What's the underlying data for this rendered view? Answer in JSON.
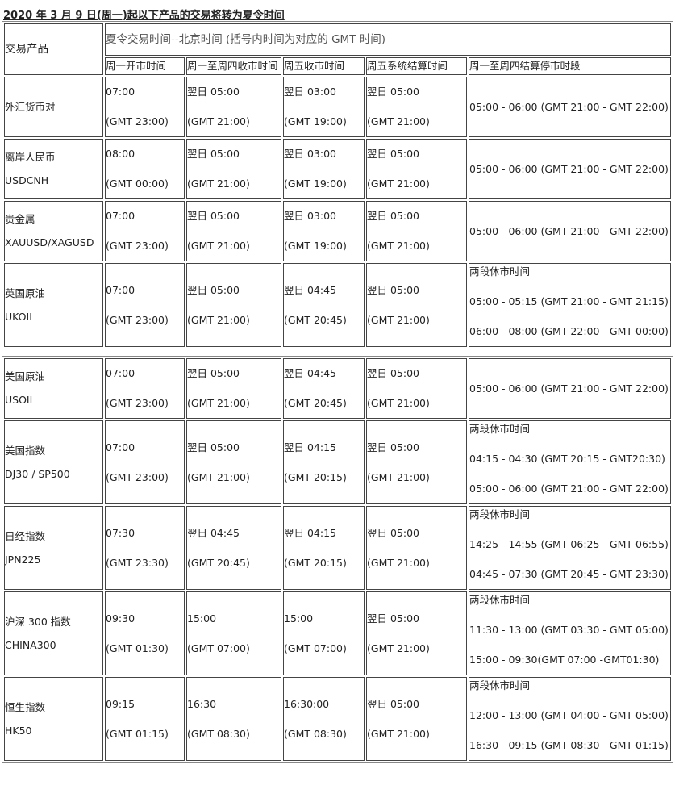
{
  "title": "2020 年 3 月 9 日(周一)起以下产品的交易将转为夏令时间",
  "table": {
    "header": {
      "product": "交易产品",
      "group": "夏令交易时间--北京时间 (括号内时间为对应的 GMT 时间)",
      "columns": [
        "周一开市时间",
        "周一至周四收市时间",
        "周五收市时间",
        "周五系统结算时间",
        "周一至周四结算停市时段"
      ]
    },
    "row_groups": [
      {
        "rows": [
          {
            "product": [
              "外汇货币对"
            ],
            "times": [
              [
                "07:00",
                "(GMT 23:00)"
              ],
              [
                "翌日 05:00",
                "(GMT 21:00)"
              ],
              [
                "翌日 03:00",
                "(GMT 19:00)"
              ],
              [
                "翌日 05:00",
                "(GMT 21:00)"
              ]
            ],
            "pause": [
              "05:00 - 06:00 (GMT 21:00 - GMT 22:00)"
            ]
          },
          {
            "product": [
              "离岸人民币",
              "USDCNH"
            ],
            "times": [
              [
                "08:00",
                "(GMT 00:00)"
              ],
              [
                "翌日 05:00",
                "(GMT 21:00)"
              ],
              [
                "翌日 03:00",
                "(GMT 19:00)"
              ],
              [
                "翌日 05:00",
                "(GMT 21:00)"
              ]
            ],
            "pause": [
              "05:00 - 06:00 (GMT 21:00 - GMT 22:00)"
            ]
          },
          {
            "product": [
              "贵金属",
              "XAUUSD/XAGUSD"
            ],
            "times": [
              [
                "07:00",
                "(GMT 23:00)"
              ],
              [
                "翌日 05:00",
                "(GMT 21:00)"
              ],
              [
                "翌日 03:00",
                "(GMT 19:00)"
              ],
              [
                "翌日 05:00",
                "(GMT 21:00)"
              ]
            ],
            "pause": [
              "05:00 - 06:00 (GMT 21:00 - GMT 22:00)"
            ]
          },
          {
            "product": [
              "英国原油",
              "UKOIL"
            ],
            "times": [
              [
                "07:00",
                "(GMT 23:00)"
              ],
              [
                "翌日  05:00",
                "(GMT 21:00)"
              ],
              [
                "翌日  04:45",
                "(GMT 20:45)"
              ],
              [
                "翌日 05:00",
                "(GMT 21:00)"
              ]
            ],
            "pause": [
              "两段休市时间",
              "05:00 - 05:15 (GMT 21:00 - GMT 21:15)",
              "06:00 - 08:00 (GMT 22:00 - GMT 00:00)"
            ]
          }
        ]
      },
      {
        "rows": [
          {
            "product": [
              "美国原油",
              "USOIL"
            ],
            "times": [
              [
                "07:00",
                "(GMT 23:00)"
              ],
              [
                "翌日  05:00",
                "(GMT 21:00)"
              ],
              [
                "翌日  04:45",
                "(GMT 20:45)"
              ],
              [
                "翌日 05:00",
                "(GMT 21:00)"
              ]
            ],
            "pause": [
              "05:00 - 06:00 (GMT 21:00 - GMT 22:00)"
            ]
          },
          {
            "product": [
              "美国指数",
              "DJ30 / SP500"
            ],
            "times": [
              [
                "07:00",
                "(GMT 23:00)"
              ],
              [
                "翌日  05:00",
                "(GMT 21:00)"
              ],
              [
                "翌日  04:15",
                "(GMT 20:15)"
              ],
              [
                "翌日 05:00",
                "(GMT 21:00)"
              ]
            ],
            "pause": [
              "两段休市时间",
              "04:15 - 04:30 (GMT 20:15 - GMT20:30)",
              "05:00 - 06:00 (GMT 21:00 - GMT 22:00)"
            ]
          },
          {
            "product": [
              "日经指数",
              "JPN225"
            ],
            "times": [
              [
                "07:30",
                "(GMT 23:30)"
              ],
              [
                "翌日  04:45",
                "(GMT 20:45)"
              ],
              [
                "翌日  04:15",
                "(GMT 20:15)"
              ],
              [
                "翌日 05:00",
                "(GMT 21:00)"
              ]
            ],
            "pause": [
              "两段休市时间",
              "14:25 - 14:55 (GMT 06:25 - GMT 06:55)",
              "04:45 - 07:30 (GMT 20:45 - GMT 23:30)"
            ]
          },
          {
            "product": [
              "沪深 300 指数",
              "CHINA300"
            ],
            "times": [
              [
                "09:30",
                "(GMT 01:30)"
              ],
              [
                "15:00",
                "(GMT 07:00)"
              ],
              [
                "15:00",
                "(GMT 07:00)"
              ],
              [
                "翌日 05:00",
                "(GMT 21:00)"
              ]
            ],
            "pause": [
              "两段休市时间",
              "11:30 - 13:00 (GMT 03:30 - GMT 05:00)",
              "15:00 - 09:30(GMT 07:00 -GMT01:30)"
            ]
          },
          {
            "product": [
              "恒生指数",
              "HK50"
            ],
            "times": [
              [
                "09:15",
                "(GMT 01:15)"
              ],
              [
                "16:30",
                "(GMT 08:30)"
              ],
              [
                "16:30:00",
                "(GMT 08:30)"
              ],
              [
                "翌日 05:00",
                "(GMT 21:00)"
              ]
            ],
            "pause": [
              "两段休市时间",
              "12:00 - 13:00 (GMT 04:00 - GMT 05:00)",
              "16:30 - 09:15 (GMT 08:30 - GMT 01:15)"
            ]
          }
        ]
      }
    ]
  }
}
